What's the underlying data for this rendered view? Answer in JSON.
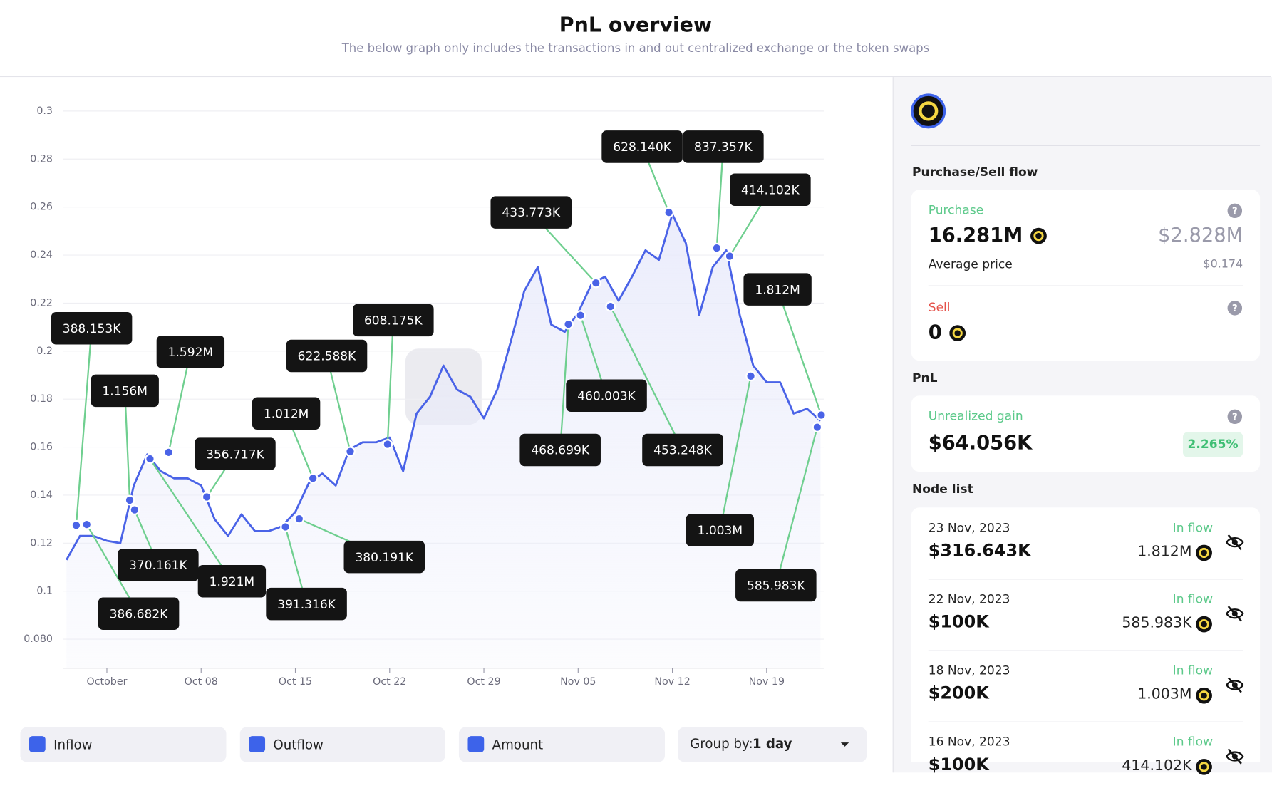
{
  "header": {
    "title": "PnL overview",
    "subtitle": "The below graph only includes the transactions in and out centralized exchange or the token swaps"
  },
  "chart_data": {
    "type": "line",
    "color": "#4a63e7",
    "area_color": "#e9ebfb",
    "grid": true,
    "categories": [
      null,
      null,
      null,
      "October",
      null,
      null,
      null,
      null,
      null,
      null,
      "Oct 08",
      null,
      null,
      null,
      null,
      null,
      null,
      "Oct 15",
      null,
      null,
      null,
      null,
      null,
      null,
      "Oct 22",
      null,
      null,
      null,
      null,
      null,
      null,
      "Oct 29",
      null,
      null,
      null,
      null,
      null,
      null,
      "Nov 05",
      null,
      null,
      null,
      null,
      null,
      null,
      "Nov 12",
      null,
      null,
      null,
      null,
      null,
      null,
      "Nov 19",
      null,
      null,
      null,
      null
    ],
    "values": [
      0.113,
      0.123,
      0.123,
      0.121,
      0.12,
      0.144,
      0.157,
      0.15,
      0.147,
      0.147,
      0.144,
      0.13,
      0.123,
      0.132,
      0.125,
      0.125,
      0.127,
      0.133,
      0.145,
      0.149,
      0.144,
      0.159,
      0.162,
      0.162,
      0.164,
      0.15,
      0.174,
      0.181,
      0.194,
      0.184,
      0.181,
      0.172,
      0.184,
      0.204,
      0.225,
      0.235,
      0.211,
      0.208,
      0.216,
      0.228,
      0.231,
      0.221,
      0.231,
      0.242,
      0.238,
      0.257,
      0.245,
      0.215,
      0.235,
      0.242,
      0.215,
      0.194,
      0.187,
      0.187,
      0.174,
      0.176,
      0.171
    ],
    "ylim": [
      0.068,
      0.3
    ],
    "yticks": [
      0.3,
      0.28,
      0.26,
      0.24,
      0.22,
      0.2,
      0.18,
      0.16,
      0.14,
      0.12,
      0.1,
      {
        "value": 0.08,
        "label": "0.080"
      }
    ],
    "annotations": [
      "388.153K",
      "386.682K",
      "1.156M",
      "370.161K",
      "1.592M",
      "1.921M",
      "356.717K",
      "1.012M",
      "391.316K",
      "622.588K",
      "380.191K",
      "608.175K",
      "433.773K",
      "468.699K",
      "460.003K",
      "453.248K",
      "628.140K",
      "837.357K",
      "414.102K",
      "1.812M",
      "1.003M",
      "585.983K"
    ]
  },
  "controls": {
    "checkboxes": [
      "Inflow",
      "Outflow",
      "Amount"
    ],
    "group_by_label": "Group by:",
    "group_by_value": "1 day"
  },
  "panel": {
    "flow_title": "Purchase/Sell flow",
    "purchase_label": "Purchase",
    "purchase_amount": "16.281M",
    "purchase_usd": "$2.828M",
    "avg_label": "Average price",
    "avg_value": "$0.174",
    "sell_label": "Sell",
    "sell_amount": "0",
    "pnl_title": "PnL",
    "gain_label": "Unrealized gain",
    "gain_value": "$64.056K",
    "gain_pct": "2.265%",
    "nodes_title": "Node list",
    "nodes": [
      {
        "date": "23 Nov, 2023",
        "value": "$316.643K",
        "direction": "In flow",
        "amount": "1.812M"
      },
      {
        "date": "22 Nov, 2023",
        "value": "$100K",
        "direction": "In flow",
        "amount": "585.983K"
      },
      {
        "date": "18 Nov, 2023",
        "value": "$200K",
        "direction": "In flow",
        "amount": "1.003M"
      },
      {
        "date": "16 Nov, 2023",
        "value": "$100K",
        "direction": "In flow",
        "amount": "414.102K"
      }
    ]
  }
}
